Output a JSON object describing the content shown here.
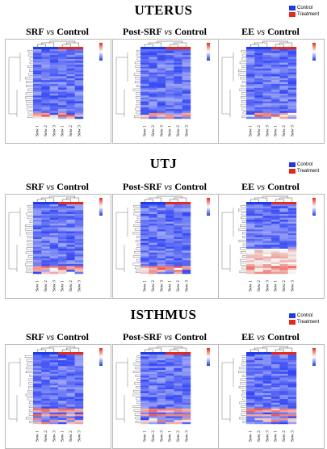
{
  "legend": {
    "control": "Control",
    "treatment": "Treatment",
    "control_color": "#1f3ce0",
    "treatment_color": "#e22a1a"
  },
  "sections": [
    {
      "title": "UTERUS",
      "panels": [
        {
          "title_a": "SRF",
          "vs": "vs",
          "title_b": "Control",
          "samples": [
            "Sow 1",
            "Sow 2",
            "Sow 3",
            "Sow 1",
            "Sow 2",
            "Sow 3"
          ]
        },
        {
          "title_a": "Post-SRF",
          "vs": "vs",
          "title_b": "Control",
          "samples": [
            "Sow 1",
            "Sow 2",
            "Sow 3",
            "Sow 1",
            "Sow 2",
            "Sow 3"
          ]
        },
        {
          "title_a": "EE",
          "vs": "vs",
          "title_b": "Control",
          "samples": [
            "Sow 1",
            "Sow 2",
            "Sow 3",
            "Sow 1",
            "Sow 2",
            "Sow 3"
          ]
        }
      ]
    },
    {
      "title": "UTJ",
      "panels": [
        {
          "title_a": "SRF",
          "vs": "vs",
          "title_b": "Control",
          "samples": [
            "Sow 1",
            "Sow 2",
            "Sow 3",
            "Sow 1",
            "Sow 2",
            "Sow 3"
          ]
        },
        {
          "title_a": "Post-SRF",
          "vs": "vs",
          "title_b": "Control",
          "samples": [
            "Sow 1",
            "Sow 2",
            "Sow 3",
            "Sow 1",
            "Sow 2",
            "Sow 3"
          ]
        },
        {
          "title_a": "EE",
          "vs": "vs",
          "title_b": "Control",
          "samples": [
            "Sow 1",
            "Sow 2",
            "Sow 3",
            "Sow 1",
            "Sow 2",
            "Sow 3"
          ]
        }
      ]
    },
    {
      "title": "ISTHMUS",
      "panels": [
        {
          "title_a": "SRF",
          "vs": "vs",
          "title_b": "Control",
          "samples": [
            "Sow 1",
            "Sow 2",
            "Sow 3",
            "Sow 1",
            "Sow 2",
            "Sow 3"
          ]
        },
        {
          "title_a": "Post-SRF",
          "vs": "vs",
          "title_b": "Control",
          "samples": [
            "Sow 1",
            "Sow 2",
            "Sow 3",
            "Sow 1",
            "Sow 2",
            "Sow 3"
          ]
        },
        {
          "title_a": "EE",
          "vs": "vs",
          "title_b": "Control",
          "samples": [
            "Sow 1",
            "Sow 2",
            "Sow 3",
            "Sow 1",
            "Sow 2",
            "Sow 3"
          ]
        }
      ]
    }
  ]
}
